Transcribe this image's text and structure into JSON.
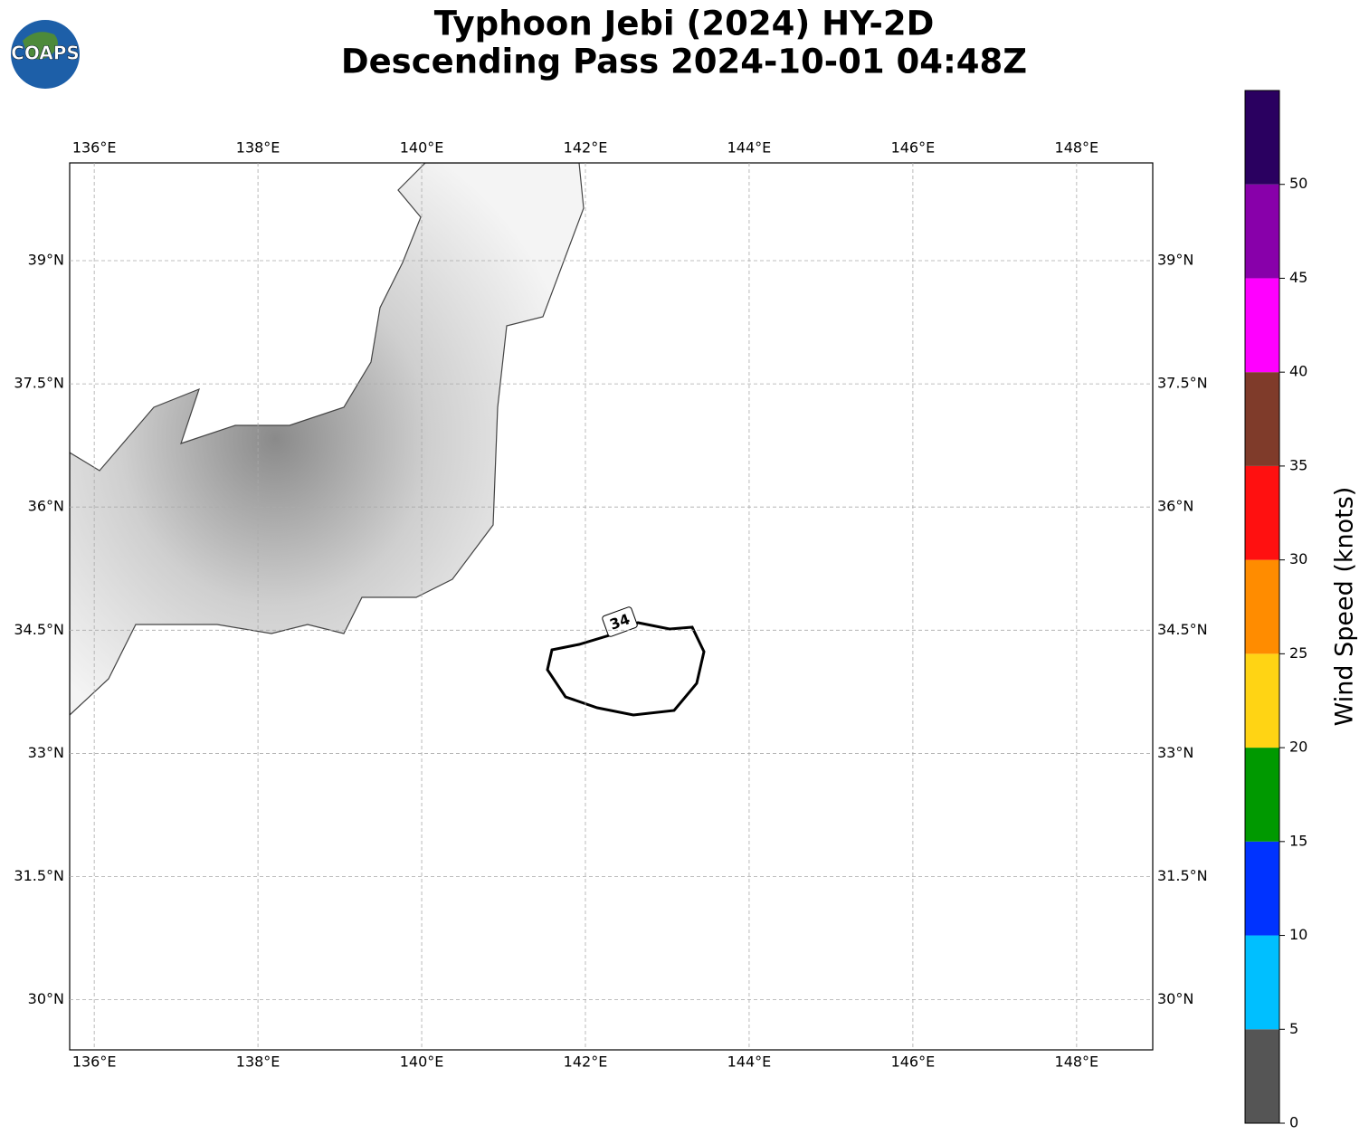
{
  "chart_data": {
    "type": "map",
    "title": "Typhoon Jebi (2024) HY-2D",
    "subtitle": "Descending Pass 2024-10-01 04:48Z",
    "logo": "COAPS",
    "xlim": [
      135.7,
      148.93
    ],
    "ylim": [
      29.39,
      40.19
    ],
    "xticks": [
      {
        "value": 136,
        "label": "136°E"
      },
      {
        "value": 138,
        "label": "138°E"
      },
      {
        "value": 140,
        "label": "140°E"
      },
      {
        "value": 142,
        "label": "142°E"
      },
      {
        "value": 144,
        "label": "144°E"
      },
      {
        "value": 146,
        "label": "146°E"
      },
      {
        "value": 148,
        "label": "148°E"
      }
    ],
    "yticks": [
      {
        "value": 30,
        "label": "30°N"
      },
      {
        "value": 31.5,
        "label": "31.5°N"
      },
      {
        "value": 33,
        "label": "33°N"
      },
      {
        "value": 34.5,
        "label": "34.5°N"
      },
      {
        "value": 36,
        "label": "36°N"
      },
      {
        "value": 37.5,
        "label": "37.5°N"
      },
      {
        "value": 39,
        "label": "39°N"
      }
    ],
    "grid": true,
    "contour_label": 34,
    "colorbar": {
      "label": "Wind Speed (knots)",
      "bounds": [
        0,
        5,
        10,
        15,
        20,
        25,
        30,
        35,
        40,
        45,
        50,
        55
      ],
      "colors": [
        "#555555",
        "#00bfff",
        "#0033ff",
        "#009900",
        "#ffd414",
        "#ff8c00",
        "#ff1010",
        "#7f3b2a",
        "#ff00ff",
        "#8800aa",
        "#2a0060"
      ],
      "ticks": [
        0,
        5,
        10,
        15,
        20,
        25,
        30,
        35,
        40,
        45,
        50
      ]
    }
  }
}
